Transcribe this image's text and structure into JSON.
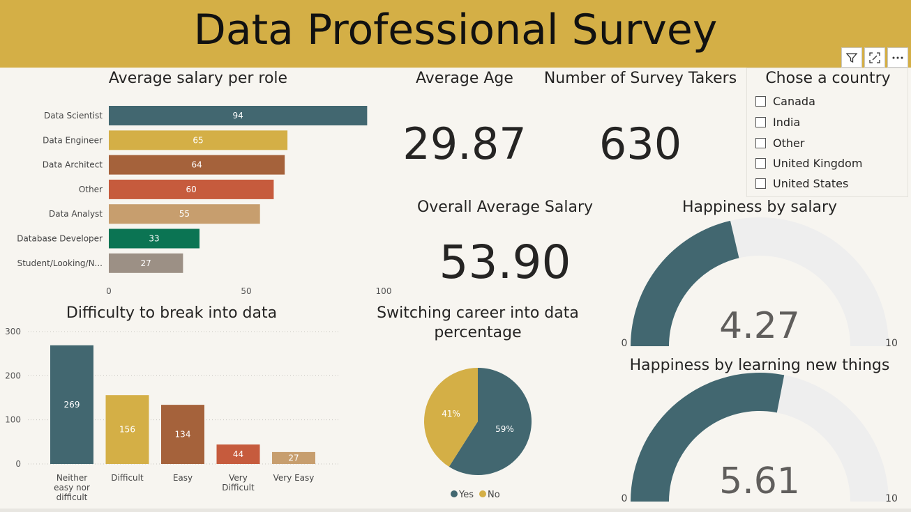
{
  "header": {
    "title": "Data Professional Survey",
    "bg_color": "#d4af46",
    "toolbar": [
      {
        "icon": "filter-icon"
      },
      {
        "icon": "focus-mode-icon"
      },
      {
        "icon": "more-options-icon"
      }
    ]
  },
  "salary_by_role": {
    "title": "Average salary per role",
    "chart_data": {
      "type": "bar",
      "orientation": "horizontal",
      "categories": [
        "Data Scientist",
        "Data Engineer",
        "Data Architect",
        "Other",
        "Data Analyst",
        "Database Developer",
        "Student/Looking/N..."
      ],
      "values": [
        94,
        65,
        64,
        60,
        55,
        33,
        27
      ],
      "colors": [
        "#426770",
        "#d4af46",
        "#a5623b",
        "#c65b3d",
        "#c79e6e",
        "#0b7453",
        "#9c9085"
      ],
      "xlim": [
        0,
        100
      ],
      "xticks": [
        "0",
        "50",
        "100"
      ]
    }
  },
  "average_age": {
    "title": "Average Age",
    "value": "29.87"
  },
  "survey_takers": {
    "title": "Number of Survey Takers",
    "value": "630"
  },
  "overall_salary": {
    "title": "Overall Average Salary",
    "value": "53.90"
  },
  "country_slicer": {
    "title": "Chose a country",
    "options": [
      "Canada",
      "India",
      "Other",
      "United Kingdom",
      "United States"
    ]
  },
  "happiness_salary": {
    "title": "Happiness by salary",
    "chart_data": {
      "type": "gauge",
      "value": 4.27,
      "value_label": "4.27",
      "min": 0,
      "max": 10,
      "min_label": "0",
      "max_label": "10",
      "fill_color": "#426770",
      "track_color": "#eeeeee"
    }
  },
  "happiness_learning": {
    "title": "Happiness by learning new things",
    "chart_data": {
      "type": "gauge",
      "value": 5.61,
      "value_label": "5.61",
      "min": 0,
      "max": 10,
      "min_label": "0",
      "max_label": "10",
      "fill_color": "#426770",
      "track_color": "#eeeeee"
    }
  },
  "difficulty": {
    "title": "Difficulty to break into data",
    "chart_data": {
      "type": "bar",
      "orientation": "vertical",
      "categories": [
        [
          "Neither",
          "easy nor",
          "difficult"
        ],
        [
          "Difficult"
        ],
        [
          "Easy"
        ],
        [
          "Very",
          "Difficult"
        ],
        [
          "Very Easy"
        ]
      ],
      "values": [
        269,
        156,
        134,
        44,
        27
      ],
      "colors": [
        "#426770",
        "#d4af46",
        "#a5623b",
        "#c65b3d",
        "#c79e6e"
      ],
      "ylim": [
        0,
        300
      ],
      "yticks": [
        0,
        100,
        200,
        300
      ],
      "grid": true
    }
  },
  "switching": {
    "title_lines": [
      "Switching career into data",
      "percentage"
    ],
    "chart_data": {
      "type": "pie",
      "slices": [
        {
          "name": "Yes",
          "value": 59,
          "label": "59%",
          "color": "#426770"
        },
        {
          "name": "No",
          "value": 41,
          "label": "41%",
          "color": "#d4af46"
        }
      ],
      "legend_position": "bottom"
    }
  }
}
